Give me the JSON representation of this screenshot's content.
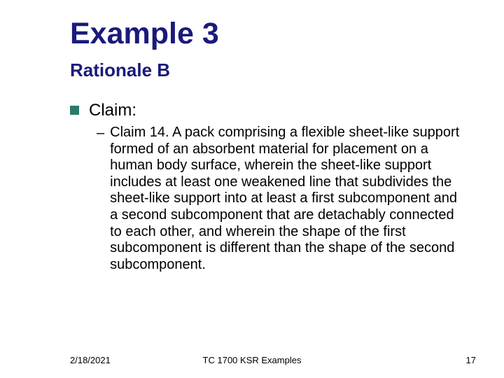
{
  "title": "Example 3",
  "subtitle": "Rationale B",
  "bullet": {
    "label": "Claim:"
  },
  "sub": {
    "text": "Claim 14. A pack comprising a flexible sheet-like support formed of an absorbent material for placement on a human body surface, wherein the sheet-like support includes at least one weakened line that subdivides the sheet-like support into at least a first subcomponent and a second subcomponent that are detachably connected to each other, and wherein the shape of the first subcomponent is different than the shape of the second subcomponent."
  },
  "footer": {
    "date": "2/18/2021",
    "center": "TC 1700 KSR Examples",
    "page": "17"
  },
  "colors": {
    "heading": "#1a1a7a",
    "bullet_square": "#2a7a6a",
    "text": "#000000",
    "background": "#ffffff"
  }
}
